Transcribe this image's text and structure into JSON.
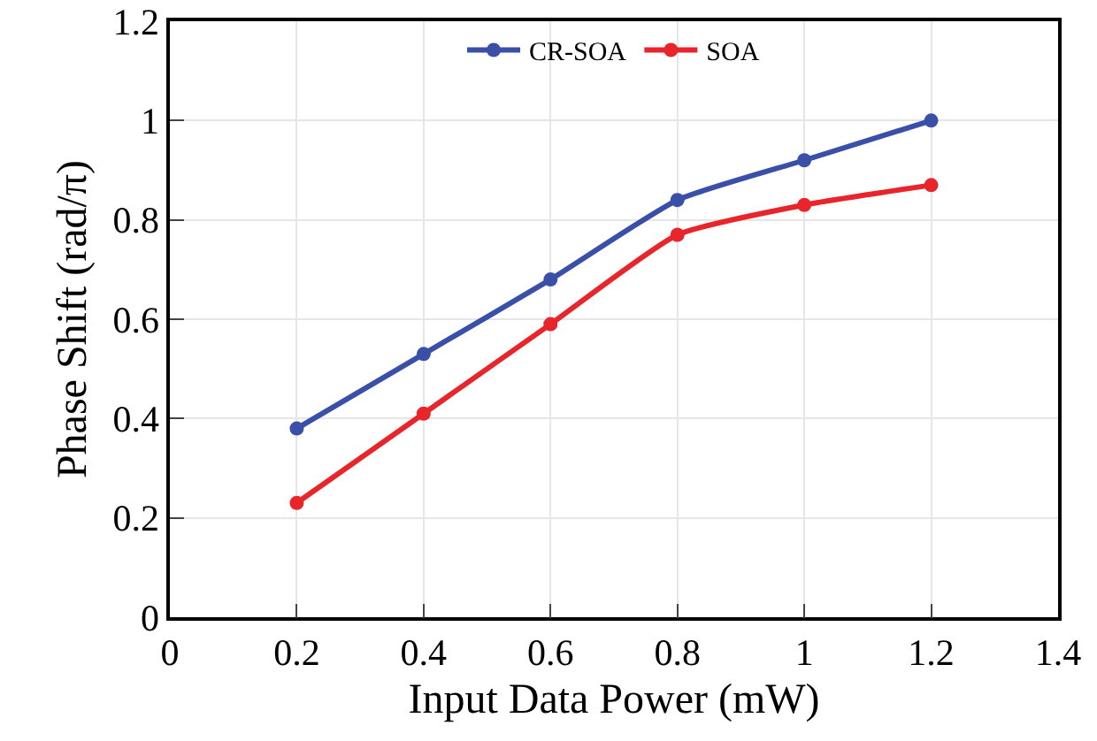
{
  "chart_data": {
    "type": "line",
    "xlabel": "Input Data Power (mW)",
    "ylabel": "Phase Shift (rad/π)",
    "x": [
      0.2,
      0.4,
      0.6,
      0.8,
      1,
      1.2
    ],
    "series": [
      {
        "name": "CR-SOA",
        "color": "#3a4fa8",
        "values": [
          0.38,
          0.53,
          0.68,
          0.84,
          0.92,
          1.0
        ]
      },
      {
        "name": "SOA",
        "color": "#e8252a",
        "values": [
          0.23,
          0.41,
          0.59,
          0.77,
          0.83,
          0.87
        ]
      }
    ],
    "xlim": [
      0,
      1.4
    ],
    "xticks": [
      0,
      0.2,
      0.4,
      0.6,
      0.8,
      1,
      1.2,
      1.4
    ],
    "ylim": [
      0,
      1.2
    ],
    "yticks": [
      0,
      0.2,
      0.4,
      0.6,
      0.8,
      1,
      1.2
    ],
    "grid": true,
    "legend": "top",
    "marker": "circle",
    "line_style": "solid"
  }
}
